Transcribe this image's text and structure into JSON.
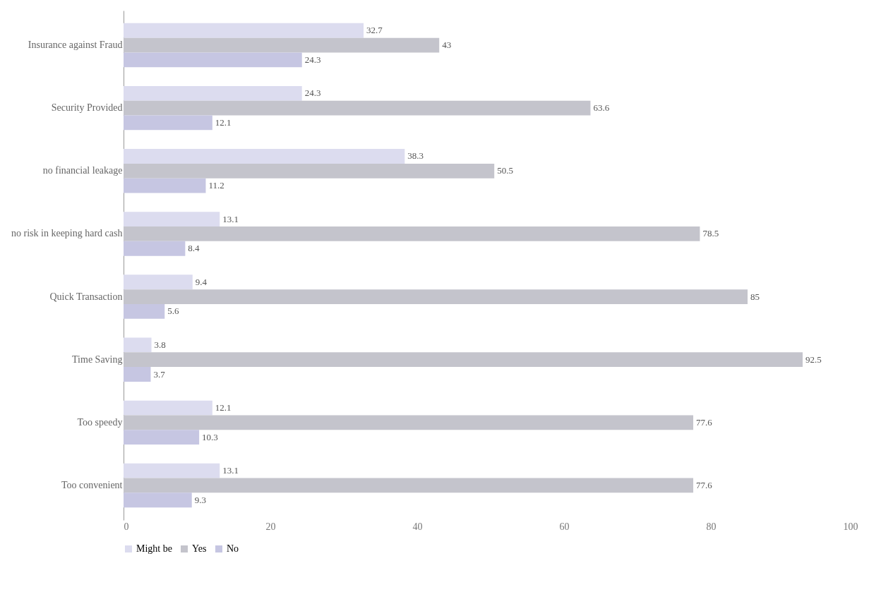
{
  "chart_data": {
    "type": "bar",
    "orientation": "horizontal",
    "categories": [
      "Insurance against Fraud",
      "Security Provided",
      "no financial leakage",
      "no risk in keeping hard cash",
      "Quick Transaction",
      "Time Saving",
      "Too speedy",
      "Too convenient"
    ],
    "series": [
      {
        "name": "Might be",
        "color": "#dcdcef",
        "values": [
          32.7,
          24.3,
          38.3,
          13.1,
          9.4,
          3.8,
          12.1,
          13.1
        ]
      },
      {
        "name": "Yes",
        "color": "#c4c4cc",
        "values": [
          43,
          63.6,
          50.5,
          78.5,
          85,
          92.5,
          77.6,
          77.6
        ]
      },
      {
        "name": "No",
        "color": "#c6c6e2",
        "values": [
          24.3,
          12.1,
          11.2,
          8.4,
          5.6,
          3.7,
          10.3,
          9.3
        ]
      }
    ],
    "xlim": [
      0,
      100
    ],
    "xticks": [
      0,
      20,
      40,
      60,
      80,
      100
    ],
    "grid": false,
    "legend": "bottom",
    "data_labels": true
  }
}
